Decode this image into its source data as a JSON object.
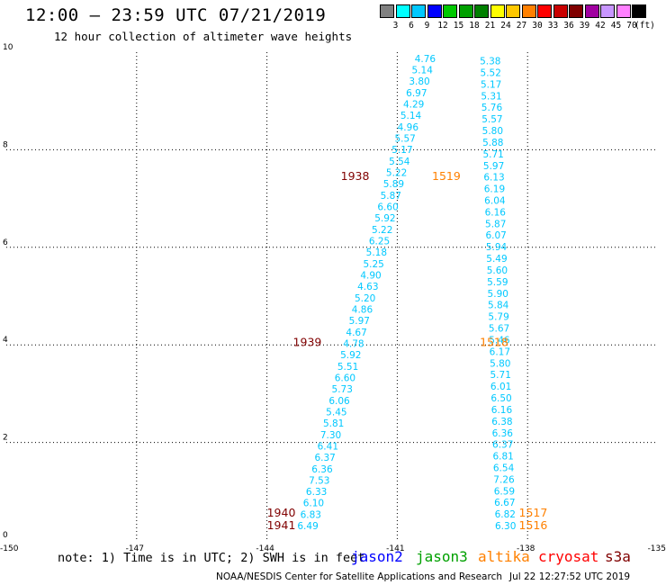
{
  "header": {
    "title": "12:00 – 23:59 UTC 07/21/2019",
    "subtitle": "12 hour collection of altimeter wave heights"
  },
  "colorbar": {
    "colors": [
      "#808080",
      "#00ffff",
      "#00c8ff",
      "#0000ff",
      "#00c800",
      "#00a000",
      "#008000",
      "#ffff00",
      "#ffc800",
      "#ff8000",
      "#ff0000",
      "#c80000",
      "#800000",
      "#a000a0",
      "#c896ff",
      "#ff80ff",
      "#000000"
    ],
    "labels": [
      "3",
      "6",
      "9",
      "12",
      "15",
      "18",
      "21",
      "24",
      "27",
      "30",
      "33",
      "36",
      "39",
      "42",
      "45",
      "70"
    ],
    "unit": "(ft)"
  },
  "chart_data": {
    "type": "scatter",
    "title": "12:00 – 23:59 UTC 07/21/2019",
    "subtitle": "12 hour collection of altimeter wave heights",
    "xlim": [
      -150,
      -135
    ],
    "ylim": [
      0,
      10
    ],
    "x_ticks": [
      "-150",
      "-147",
      "-144",
      "-141",
      "-138",
      "-135"
    ],
    "y_ticks": [
      "0",
      "2",
      "4",
      "6",
      "8",
      "10"
    ],
    "grid": "dotted",
    "value_color": "#00c8ff",
    "tracks": [
      {
        "name": "pass-west",
        "start": [
          -143.3,
          0.22
        ],
        "end": [
          -140.6,
          9.8
        ],
        "values": [
          "6.49",
          "6.83",
          "6.10",
          "6.33",
          "7.53",
          "6.36",
          "6.37",
          "6.41",
          "7.30",
          "5.81",
          "5.45",
          "6.06",
          "5.73",
          "6.60",
          "5.51",
          "5.92",
          "4.78",
          "4.67",
          "5.97",
          "4.86",
          "5.20",
          "4.63",
          "4.90",
          "5.25",
          "5.18",
          "6.25",
          "5.22",
          "5.92",
          "6.60",
          "5.87",
          "5.89",
          "5.22",
          "5.54",
          "5.17",
          "5.57",
          "4.96",
          "5.14",
          "4.29",
          "6.97",
          "3.80",
          "5.14",
          "4.76"
        ]
      },
      {
        "name": "pass-east",
        "start": [
          -138.75,
          0.22
        ],
        "end": [
          -139.1,
          9.75
        ],
        "values": [
          "6.30",
          "6.82",
          "6.67",
          "6.59",
          "7.26",
          "6.54",
          "6.81",
          "6.37",
          "6.36",
          "6.38",
          "6.16",
          "6.50",
          "6.01",
          "5.71",
          "5.80",
          "6.17",
          "5.46",
          "5.67",
          "5.79",
          "5.84",
          "5.90",
          "5.59",
          "5.60",
          "5.49",
          "5.94",
          "6.07",
          "5.87",
          "6.16",
          "6.04",
          "6.19",
          "6.13",
          "5.97",
          "5.71",
          "5.88",
          "5.80",
          "5.57",
          "5.76",
          "5.31",
          "5.17",
          "5.52",
          "5.38"
        ]
      }
    ],
    "time_labels": [
      {
        "text": "1941",
        "x": -144.0,
        "y": 0.22,
        "color": "#800000"
      },
      {
        "text": "1940",
        "x": -144.0,
        "y": 0.48,
        "color": "#800000"
      },
      {
        "text": "1939",
        "x": -143.4,
        "y": 3.98,
        "color": "#800000"
      },
      {
        "text": "1938",
        "x": -142.3,
        "y": 7.38,
        "color": "#800000"
      },
      {
        "text": "1519",
        "x": -140.2,
        "y": 7.38,
        "color": "#ff8000"
      },
      {
        "text": "1518",
        "x": -139.1,
        "y": 3.98,
        "color": "#ff8000"
      },
      {
        "text": "1517",
        "x": -138.2,
        "y": 0.48,
        "color": "#ff8000"
      },
      {
        "text": "1516",
        "x": -138.2,
        "y": 0.22,
        "color": "#ff8000"
      }
    ]
  },
  "footer": {
    "note": "note: 1) Time is in UTC; 2) SWH is in feet",
    "legend": [
      {
        "label": "jason2",
        "color": "#0000ff"
      },
      {
        "label": "jason3",
        "color": "#00a000"
      },
      {
        "label": "altika",
        "color": "#ff8000"
      },
      {
        "label": "cryosat",
        "color": "#ff0000"
      },
      {
        "label": "s3a",
        "color": "#800000"
      }
    ],
    "credit": "NOAA/NESDIS Center for Satellite Applications and Research",
    "stamp": "Jul 22 12:27:52 UTC 2019"
  }
}
